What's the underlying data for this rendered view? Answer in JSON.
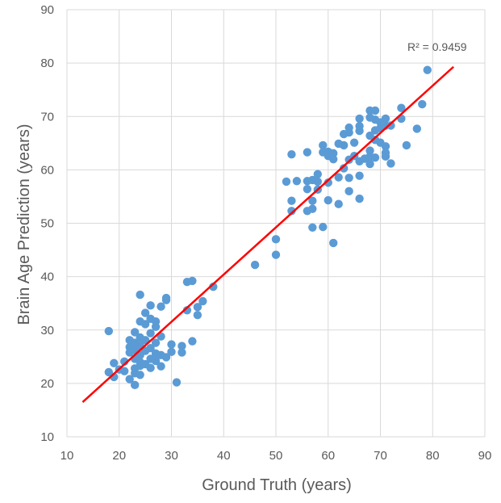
{
  "chart_data": {
    "type": "scatter",
    "title": "",
    "xlabel": "Ground Truth (years)",
    "ylabel": "Brain Age Prediction (years)",
    "xlim": [
      10,
      90
    ],
    "ylim": [
      10,
      90
    ],
    "xticks": [
      10,
      20,
      30,
      40,
      50,
      60,
      70,
      80,
      90
    ],
    "yticks": [
      10,
      20,
      30,
      40,
      50,
      60,
      70,
      80,
      90
    ],
    "grid": true,
    "annotation": {
      "r2_label": "R² = 0.9459"
    },
    "point_color": "#5b9bd5",
    "trendline": {
      "color": "#ff0000",
      "x_start": 13,
      "y_start": 16.5,
      "x_end": 84,
      "y_end": 79.3
    },
    "points": [
      [
        18,
        29.8
      ],
      [
        18,
        22.1
      ],
      [
        19,
        21.2
      ],
      [
        19,
        23.8
      ],
      [
        20,
        22.6
      ],
      [
        21,
        24.1
      ],
      [
        21,
        22.3
      ],
      [
        22,
        25.8
      ],
      [
        22,
        20.8
      ],
      [
        22,
        28.1
      ],
      [
        22,
        26.8
      ],
      [
        23,
        19.7
      ],
      [
        23,
        29.6
      ],
      [
        23,
        27.6
      ],
      [
        23,
        24.6
      ],
      [
        23,
        22.8
      ],
      [
        23,
        21.9
      ],
      [
        23,
        26.2
      ],
      [
        24,
        36.6
      ],
      [
        24,
        31.6
      ],
      [
        24,
        28.6
      ],
      [
        24,
        27.1
      ],
      [
        24,
        25.3
      ],
      [
        24,
        24.0
      ],
      [
        24,
        23.3
      ],
      [
        24,
        21.6
      ],
      [
        25,
        33.2
      ],
      [
        25,
        31.1
      ],
      [
        25,
        28.1
      ],
      [
        25,
        26.1
      ],
      [
        25,
        23.6
      ],
      [
        26,
        34.6
      ],
      [
        26,
        32.1
      ],
      [
        26,
        29.4
      ],
      [
        26,
        26.6
      ],
      [
        26,
        24.6
      ],
      [
        26,
        22.9
      ],
      [
        27,
        31.6
      ],
      [
        27,
        30.6
      ],
      [
        27,
        27.6
      ],
      [
        27,
        25.6
      ],
      [
        27,
        24.2
      ],
      [
        28,
        34.4
      ],
      [
        28,
        28.8
      ],
      [
        28,
        25.3
      ],
      [
        28,
        23.2
      ],
      [
        29,
        35.6
      ],
      [
        29,
        36.0
      ],
      [
        29,
        24.9
      ],
      [
        30,
        27.3
      ],
      [
        30,
        25.9
      ],
      [
        31,
        20.2
      ],
      [
        32,
        27.0
      ],
      [
        32,
        25.8
      ],
      [
        33,
        39.0
      ],
      [
        33,
        33.7
      ],
      [
        34,
        39.2
      ],
      [
        34,
        27.9
      ],
      [
        35,
        34.3
      ],
      [
        35,
        32.8
      ],
      [
        36,
        35.4
      ],
      [
        38,
        38.1
      ],
      [
        46,
        42.2
      ],
      [
        50,
        47.0
      ],
      [
        50,
        44.1
      ],
      [
        52,
        57.8
      ],
      [
        53,
        62.9
      ],
      [
        53,
        54.2
      ],
      [
        53,
        52.3
      ],
      [
        54,
        57.9
      ],
      [
        56,
        63.3
      ],
      [
        56,
        57.9
      ],
      [
        56,
        56.4
      ],
      [
        56,
        52.3
      ],
      [
        57,
        58.1
      ],
      [
        57,
        54.2
      ],
      [
        57,
        49.2
      ],
      [
        57,
        52.7
      ],
      [
        58,
        59.2
      ],
      [
        58,
        57.8
      ],
      [
        58,
        56.3
      ],
      [
        59,
        64.6
      ],
      [
        59,
        63.3
      ],
      [
        59,
        49.3
      ],
      [
        60,
        63.4
      ],
      [
        60,
        62.6
      ],
      [
        60,
        57.6
      ],
      [
        60,
        54.3
      ],
      [
        61,
        63.1
      ],
      [
        61,
        62.0
      ],
      [
        61,
        46.3
      ],
      [
        62,
        64.9
      ],
      [
        62,
        58.6
      ],
      [
        62,
        53.6
      ],
      [
        63,
        66.7
      ],
      [
        63,
        64.6
      ],
      [
        63,
        60.3
      ],
      [
        64,
        67.9
      ],
      [
        64,
        67.0
      ],
      [
        64,
        61.9
      ],
      [
        64,
        58.5
      ],
      [
        64,
        56.0
      ],
      [
        65,
        65.1
      ],
      [
        65,
        62.6
      ],
      [
        66,
        69.6
      ],
      [
        66,
        68.2
      ],
      [
        66,
        67.3
      ],
      [
        66,
        61.6
      ],
      [
        66,
        58.9
      ],
      [
        66,
        54.6
      ],
      [
        67,
        62.1
      ],
      [
        68,
        71.1
      ],
      [
        68,
        69.8
      ],
      [
        68,
        66.4
      ],
      [
        68,
        63.6
      ],
      [
        68,
        62.5
      ],
      [
        68,
        61.1
      ],
      [
        69,
        71.1
      ],
      [
        69,
        69.4
      ],
      [
        69,
        67.4
      ],
      [
        69,
        65.6
      ],
      [
        69,
        62.3
      ],
      [
        70,
        68.9
      ],
      [
        70,
        67.8
      ],
      [
        70,
        65.1
      ],
      [
        71,
        69.6
      ],
      [
        71,
        68.3
      ],
      [
        71,
        64.4
      ],
      [
        71,
        63.2
      ],
      [
        71,
        62.5
      ],
      [
        72,
        68.3
      ],
      [
        72,
        61.2
      ],
      [
        74,
        71.6
      ],
      [
        74,
        69.6
      ],
      [
        75,
        64.6
      ],
      [
        77,
        67.7
      ],
      [
        78,
        72.3
      ],
      [
        79,
        78.7
      ]
    ]
  }
}
